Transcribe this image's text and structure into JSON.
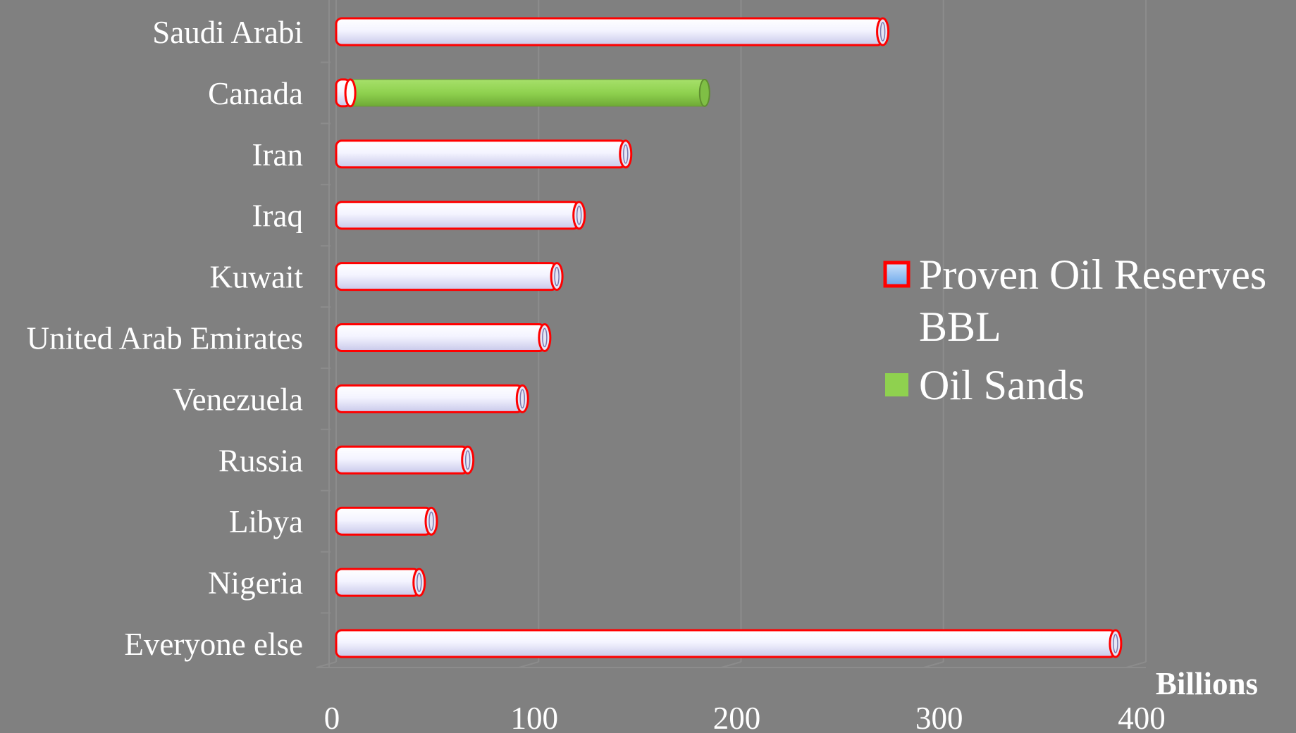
{
  "chart_data": {
    "type": "bar",
    "orientation": "horizontal",
    "categories": [
      "Saudi Arabi",
      "Canada",
      "Iran",
      "Iraq",
      "Kuwait",
      "United Arab Emirates",
      "Venezuela",
      "Russia",
      "Libya",
      "Nigeria",
      "Everyone else"
    ],
    "series": [
      {
        "name": "Proven Oil Reserves BBL",
        "values": [
          270,
          7,
          143,
          120,
          109,
          103,
          92,
          65,
          47,
          41,
          385
        ]
      },
      {
        "name": "Oil Sands",
        "values": [
          0,
          175,
          0,
          0,
          0,
          0,
          0,
          0,
          0,
          0,
          0
        ]
      }
    ],
    "stacked": true,
    "x_ticks": [
      "0",
      "100",
      "200",
      "300",
      "400"
    ],
    "xlim": [
      0,
      400
    ],
    "xlabel": "Billions",
    "grid": true,
    "legend_position": "right",
    "legend_lines": [
      [
        "Proven Oil Reserves",
        "BBL"
      ],
      [
        "Oil Sands"
      ]
    ],
    "colors": {
      "background": "#808080",
      "proven_fill": "#ffffff",
      "proven_edge": "#ff0000",
      "proven_legend_fill": "#8fbff5",
      "oil_sands": "#8fd14f",
      "grid": "#8c8c8c",
      "text": "#ffffff"
    }
  }
}
